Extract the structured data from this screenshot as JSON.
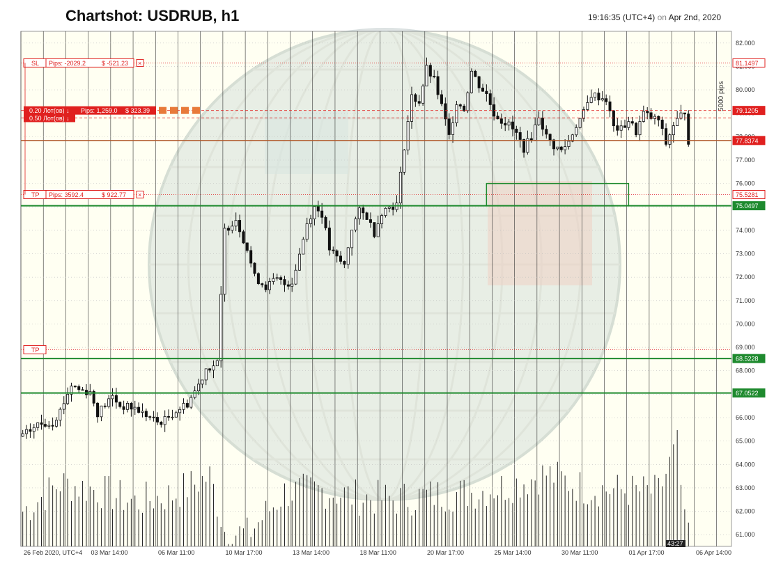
{
  "header": {
    "title": "Chartshot: USDRUB, h1",
    "time": "19:16:35 (UTC+4)",
    "on_word": "on",
    "date": "Apr 2nd, 2020"
  },
  "colors": {
    "background": "#fffff2",
    "grid": "#333333",
    "candle": "#111111",
    "green_level": "#1e8a2e",
    "red_level": "#e0201f",
    "current_price": "#b0582a"
  },
  "chart_data": {
    "type": "candlestick",
    "symbol": "USDRUB",
    "timeframe": "h1",
    "ylim": [
      60.5,
      82.5
    ],
    "y_ticks": [
      "82.000",
      "81.000",
      "80.000",
      "79.000",
      "78.000",
      "77.000",
      "76.000",
      "75.000",
      "74.000",
      "73.000",
      "72.000",
      "71.000",
      "70.000",
      "69.000",
      "68.000",
      "67.000",
      "66.000",
      "65.000",
      "64.000",
      "63.000",
      "62.000",
      "61.000"
    ],
    "x_ticks": [
      "26 Feb 2020, UTC+4",
      "03 Mar 14:00",
      "06 Mar 11:00",
      "10 Mar 17:00",
      "13 Mar 14:00",
      "18 Mar 11:00",
      "20 Mar 17:00",
      "25 Mar 14:00",
      "30 Mar 11:00",
      "01 Apr 17:00",
      "06 Apr 14:00"
    ],
    "scale_label": "5000 pips",
    "close_path": [
      [
        0,
        65.2
      ],
      [
        4,
        65.7
      ],
      [
        8,
        65.8
      ],
      [
        10,
        66.3
      ],
      [
        13,
        67.4
      ],
      [
        15,
        67.2
      ],
      [
        18,
        67.1
      ],
      [
        20,
        66.2
      ],
      [
        24,
        66.9
      ],
      [
        26,
        66.5
      ],
      [
        30,
        66.4
      ],
      [
        33,
        66.1
      ],
      [
        36,
        65.8
      ],
      [
        38,
        65.9
      ],
      [
        41,
        66.3
      ],
      [
        44,
        66.6
      ],
      [
        47,
        67.4
      ],
      [
        49,
        68.1
      ],
      [
        52,
        68.3
      ],
      [
        54,
        74.0
      ],
      [
        57,
        74.5
      ],
      [
        60,
        73.2
      ],
      [
        62,
        72.0
      ],
      [
        65,
        71.6
      ],
      [
        68,
        71.9
      ],
      [
        70,
        71.7
      ],
      [
        72,
        71.8
      ],
      [
        74,
        73.0
      ],
      [
        76,
        74.3
      ],
      [
        78,
        75.0
      ],
      [
        80,
        74.7
      ],
      [
        82,
        73.2
      ],
      [
        84,
        72.8
      ],
      [
        86,
        72.5
      ],
      [
        88,
        74.1
      ],
      [
        90,
        74.8
      ],
      [
        92,
        74.6
      ],
      [
        94,
        73.9
      ],
      [
        96,
        74.8
      ],
      [
        98,
        75.0
      ],
      [
        100,
        75.1
      ],
      [
        102,
        77.6
      ],
      [
        104,
        79.7
      ],
      [
        106,
        79.5
      ],
      [
        108,
        80.9
      ],
      [
        110,
        80.4
      ],
      [
        112,
        79.3
      ],
      [
        114,
        78.0
      ],
      [
        116,
        79.5
      ],
      [
        118,
        79.2
      ],
      [
        120,
        80.8
      ],
      [
        122,
        80.2
      ],
      [
        124,
        79.8
      ],
      [
        126,
        79.0
      ],
      [
        128,
        78.7
      ],
      [
        130,
        78.5
      ],
      [
        132,
        78.1
      ],
      [
        134,
        77.5
      ],
      [
        136,
        78.0
      ],
      [
        138,
        78.9
      ],
      [
        140,
        78.0
      ],
      [
        142,
        77.6
      ],
      [
        144,
        77.4
      ],
      [
        146,
        77.8
      ],
      [
        148,
        78.5
      ],
      [
        150,
        79.0
      ],
      [
        152,
        79.8
      ],
      [
        154,
        79.7
      ],
      [
        156,
        79.6
      ],
      [
        158,
        78.4
      ],
      [
        160,
        78.3
      ],
      [
        162,
        78.7
      ],
      [
        164,
        78.2
      ],
      [
        166,
        79.0
      ],
      [
        168,
        78.8
      ],
      [
        170,
        78.7
      ],
      [
        172,
        77.7
      ],
      [
        174,
        78.5
      ],
      [
        176,
        78.9
      ],
      [
        177,
        79.1
      ],
      [
        178,
        77.84
      ]
    ],
    "volume_profile": [
      [
        0,
        62.0
      ],
      [
        10,
        63.2
      ],
      [
        20,
        62.9
      ],
      [
        30,
        62.4
      ],
      [
        40,
        62.7
      ],
      [
        50,
        63.5
      ],
      [
        54,
        61.2
      ],
      [
        60,
        61.0
      ],
      [
        70,
        62.8
      ],
      [
        80,
        62.9
      ],
      [
        90,
        62.6
      ],
      [
        100,
        62.5
      ],
      [
        110,
        62.7
      ],
      [
        120,
        62.8
      ],
      [
        130,
        63.1
      ],
      [
        140,
        63.6
      ],
      [
        150,
        63.0
      ],
      [
        160,
        62.9
      ],
      [
        170,
        62.8
      ],
      [
        175,
        64.8
      ],
      [
        177,
        61.3
      ]
    ],
    "levels": [
      {
        "name": "SL",
        "value": 81.1497,
        "label": "81.1497",
        "kind": "order",
        "tag_text": "SL",
        "pips": "Pips: -2029.2",
        "money": "$ -521.23"
      },
      {
        "name": "TP",
        "value": 75.5281,
        "label": "75.5281",
        "kind": "order",
        "tag_text": "TP",
        "pips": "Pips: 3592.4",
        "money": "$ 922.77"
      },
      {
        "name": "TP2",
        "value": 68.9,
        "label": "",
        "kind": "order",
        "tag_text": "TP",
        "pips": "",
        "money": ""
      },
      {
        "name": "pos1",
        "value": 79.1205,
        "label": "79.1205",
        "kind": "position"
      },
      {
        "name": "pos2",
        "value": 78.8,
        "label": "",
        "kind": "position"
      },
      {
        "name": "current",
        "value": 77.8374,
        "label": "77.8374",
        "kind": "current"
      },
      {
        "name": "g1",
        "value": 75.0497,
        "label": "75.0497",
        "kind": "green"
      },
      {
        "name": "g2",
        "value": 68.5228,
        "label": "68.5228",
        "kind": "green"
      },
      {
        "name": "g3",
        "value": 67.0522,
        "label": "67.0522",
        "kind": "green"
      }
    ],
    "positions": [
      {
        "lots": "0.20 Лот(ов)",
        "pips": "Pips: 1,259.0",
        "money": "$ 323.39"
      },
      {
        "lots": "0.50 Лот(ов)",
        "pips": "",
        "money": ""
      }
    ],
    "zone": {
      "x_from": 124,
      "x_to": 162,
      "y_low": 75.05,
      "y_high": 76.0
    },
    "bottom_badge": "43:27"
  }
}
